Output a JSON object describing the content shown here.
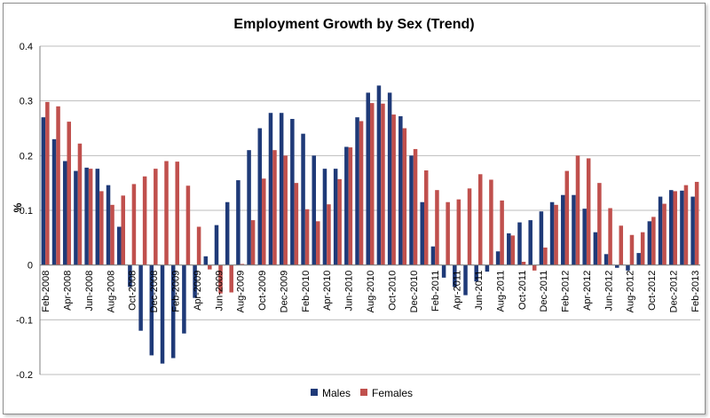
{
  "chart_data": {
    "type": "bar",
    "title": "Employment Growth by Sex (Trend)",
    "xlabel": "",
    "ylabel": "%",
    "ylim": [
      -0.2,
      0.4
    ],
    "yticks": [
      0.4,
      0.3,
      0.2,
      0.1,
      0,
      -0.1,
      -0.2
    ],
    "grid": true,
    "legend_position": "bottom",
    "colors": {
      "Males": "#1f3a78",
      "Females": "#c0504d"
    },
    "categories": [
      "Feb-2008",
      "Mar-2008",
      "Apr-2008",
      "May-2008",
      "Jun-2008",
      "Jul-2008",
      "Aug-2008",
      "Sep-2008",
      "Oct-2008",
      "Nov-2008",
      "Dec-2008",
      "Jan-2009",
      "Feb-2009",
      "Mar-2009",
      "Apr-2009",
      "May-2009",
      "Jun-2009",
      "Jul-2009",
      "Aug-2009",
      "Sep-2009",
      "Oct-2009",
      "Nov-2009",
      "Dec-2009",
      "Jan-2010",
      "Feb-2010",
      "Mar-2010",
      "Apr-2010",
      "May-2010",
      "Jun-2010",
      "Jul-2010",
      "Aug-2010",
      "Sep-2010",
      "Oct-2010",
      "Nov-2010",
      "Dec-2010",
      "Jan-2011",
      "Feb-2011",
      "Mar-2011",
      "Apr-2011",
      "May-2011",
      "Jun-2011",
      "Jul-2011",
      "Aug-2011",
      "Sep-2011",
      "Oct-2011",
      "Nov-2011",
      "Dec-2011",
      "Jan-2012",
      "Feb-2012",
      "Mar-2012",
      "Apr-2012",
      "May-2012",
      "Jun-2012",
      "Jul-2012",
      "Aug-2012",
      "Sep-2012",
      "Oct-2012",
      "Nov-2012",
      "Dec-2012",
      "Jan-2013",
      "Feb-2013"
    ],
    "tick_labels": [
      "Feb-2008",
      "Apr-2008",
      "Jun-2008",
      "Aug-2008",
      "Oct-2008",
      "Dec-2008",
      "Feb-2009",
      "Apr-2009",
      "Jun-2009",
      "Aug-2009",
      "Oct-2009",
      "Dec-2009",
      "Feb-2010",
      "Apr-2010",
      "Jun-2010",
      "Aug-2010",
      "Oct-2010",
      "Dec-2010",
      "Feb-2011",
      "Apr-2011",
      "Jun-2011",
      "Aug-2011",
      "Oct-2011",
      "Dec-2011",
      "Feb-2012",
      "Apr-2012",
      "Jun-2012",
      "Aug-2012",
      "Oct-2012",
      "Dec-2012",
      "Feb-2013"
    ],
    "series": [
      {
        "name": "Males",
        "values": [
          0.27,
          0.23,
          0.19,
          0.172,
          0.178,
          0.176,
          0.146,
          0.07,
          -0.04,
          -0.12,
          -0.165,
          -0.18,
          -0.17,
          -0.125,
          -0.06,
          0.016,
          0.073,
          0.115,
          0.155,
          0.21,
          0.25,
          0.278,
          0.278,
          0.267,
          0.24,
          0.2,
          0.176,
          0.176,
          0.216,
          0.27,
          0.315,
          0.328,
          0.315,
          0.272,
          0.2,
          0.115,
          0.034,
          -0.023,
          -0.04,
          -0.055,
          -0.03,
          -0.012,
          0.025,
          0.058,
          0.078,
          0.082,
          0.098,
          0.115,
          0.128,
          0.128,
          0.103,
          0.06,
          0.02,
          -0.005,
          -0.01,
          0.022,
          0.08,
          0.125,
          0.137,
          0.136,
          0.125
        ]
      },
      {
        "name": "Females",
        "values": [
          0.298,
          0.29,
          0.262,
          0.222,
          0.176,
          0.135,
          0.11,
          0.127,
          0.148,
          0.162,
          0.176,
          0.19,
          0.189,
          0.145,
          0.07,
          -0.008,
          -0.052,
          -0.05,
          0.002,
          0.082,
          0.158,
          0.21,
          0.2,
          0.15,
          0.102,
          0.08,
          0.111,
          0.157,
          0.215,
          0.263,
          0.296,
          0.295,
          0.275,
          0.25,
          0.212,
          0.173,
          0.137,
          0.115,
          0.12,
          0.14,
          0.166,
          0.156,
          0.118,
          0.054,
          0.006,
          -0.01,
          0.032,
          0.11,
          0.172,
          0.2,
          0.195,
          0.15,
          0.104,
          0.072,
          0.055,
          0.06,
          0.088,
          0.112,
          0.135,
          0.146,
          0.152
        ]
      }
    ]
  }
}
